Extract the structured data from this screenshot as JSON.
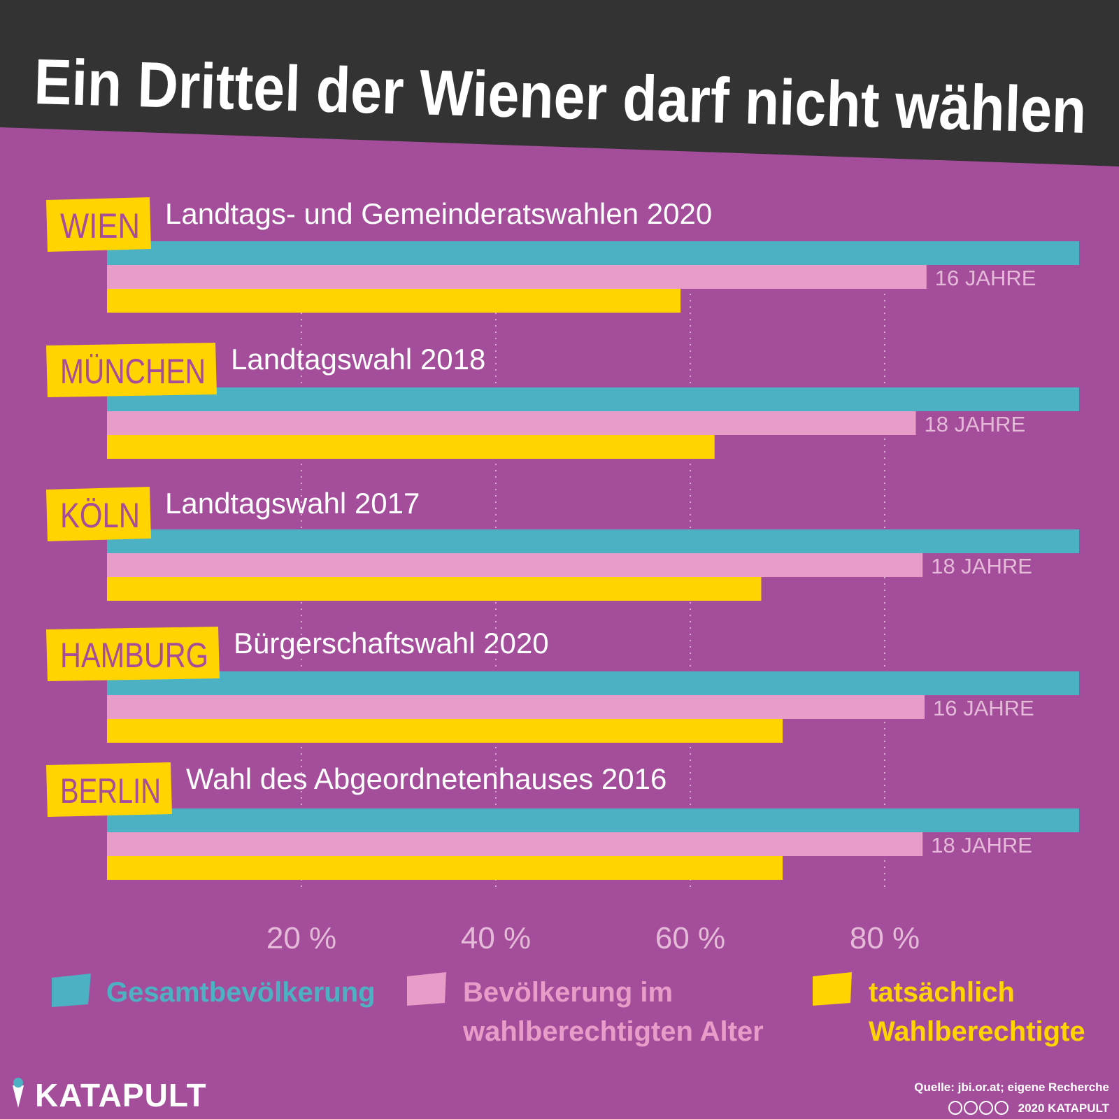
{
  "title": "Ein Drittel der Wiener darf nicht wählen",
  "colors": {
    "background": "#A44E9B",
    "header": "#333333",
    "total": "#4BB1C3",
    "voting_age": "#E89CC8",
    "eligible": "#FFD400",
    "tick": "#E4BAD8",
    "city_badge": "#FFD400",
    "city_text": "#A44E9B"
  },
  "chart_data": {
    "type": "bar",
    "orientation": "horizontal",
    "xlim": [
      0,
      100
    ],
    "unit": "%",
    "ticks": [
      {
        "value": 20,
        "label": "20 %"
      },
      {
        "value": 40,
        "label": "40 %"
      },
      {
        "value": 60,
        "label": "60 %"
      },
      {
        "value": 80,
        "label": "80 %"
      }
    ],
    "series": [
      {
        "key": "total",
        "name": "Gesamtbevölkerung",
        "color": "#4BB1C3"
      },
      {
        "key": "voting_age",
        "name": "Bevölkerung im wahlberechtigten Alter",
        "color": "#E89CC8"
      },
      {
        "key": "eligible",
        "name": "tatsächlich Wahlberechtigte",
        "color": "#FFD400"
      }
    ],
    "groups": [
      {
        "city": "WIEN",
        "election": "Landtags- und Gemeinderatswahlen 2020",
        "age_label": "16 JAHRE",
        "total": 100,
        "voting_age": 84.3,
        "eligible": 59
      },
      {
        "city": "MÜNCHEN",
        "election": "Landtagswahl 2018",
        "age_label": "18 JAHRE",
        "total": 100,
        "voting_age": 83.2,
        "eligible": 62.5
      },
      {
        "city": "KÖLN",
        "election": "Landtagswahl 2017",
        "age_label": "18 JAHRE",
        "total": 100,
        "voting_age": 83.9,
        "eligible": 67.3
      },
      {
        "city": "HAMBURG",
        "election": "Bürgerschaftswahl 2020",
        "age_label": "16 JAHRE",
        "total": 100,
        "voting_age": 84.1,
        "eligible": 69.5
      },
      {
        "city": "BERLIN",
        "election": "Wahl des Abgeordnetenhauses 2016",
        "age_label": "18 JAHRE",
        "total": 100,
        "voting_age": 83.9,
        "eligible": 69.5
      }
    ]
  },
  "legend": {
    "total": [
      "Gesamtbevölkerung"
    ],
    "voting_age": [
      "Bevölkerung im",
      "wahlberechtigten Alter"
    ],
    "eligible": [
      "tatsächlich",
      "Wahlberechtigte"
    ]
  },
  "footer": {
    "brand": "KATAPULT",
    "source": "Quelle: jbi.or.at; eigene Recherche",
    "copyright": "2020 KATAPULT"
  }
}
